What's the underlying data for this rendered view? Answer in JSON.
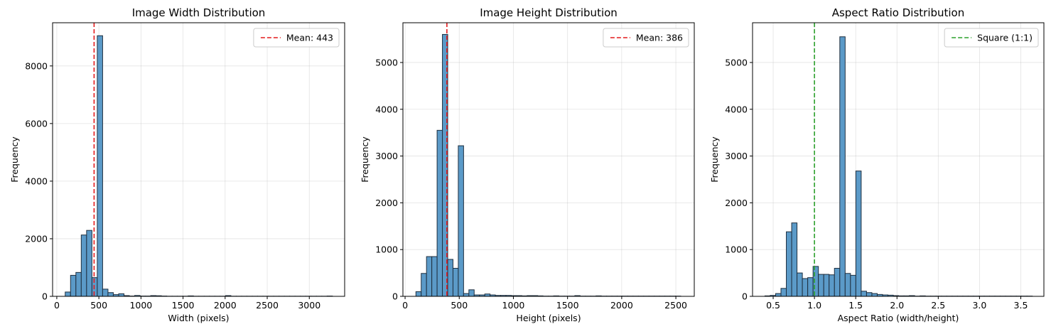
{
  "chart_data": [
    {
      "type": "bar",
      "title": "Image Width Distribution",
      "xlabel": "Width (pixels)",
      "ylabel": "Frequency",
      "xlim": [
        -50,
        3420
      ],
      "ylim": [
        0,
        9500
      ],
      "xticks": [
        0,
        500,
        1000,
        1500,
        2000,
        2500,
        3000
      ],
      "xtick_labels": [
        "0",
        "500",
        "1000",
        "1500",
        "2000",
        "2500",
        "3000"
      ],
      "yticks": [
        0,
        2000,
        4000,
        6000,
        8000
      ],
      "ytick_labels": [
        "0",
        "2000",
        "4000",
        "6000",
        "8000"
      ],
      "grid": true,
      "bar_color": "#5b9ac8",
      "bar_edge_color": "#1f2f3f",
      "bin_edges": [
        100,
        163.5,
        227,
        290.5,
        354,
        417.5,
        481,
        544.5,
        608,
        671.5,
        735,
        798.5,
        862,
        925.5,
        989,
        1052.5,
        1116,
        1179.5,
        1243,
        1306.5,
        1370,
        1433.5,
        1497,
        1560.5,
        1624,
        1687.5,
        1751,
        1814.5,
        1878,
        1941.5,
        2005,
        2068.5,
        2132,
        2195.5,
        2259,
        2322.5,
        2386,
        2449.5,
        2513,
        2576.5,
        2640,
        2703.5,
        2767,
        2830.5,
        2894,
        2957.5,
        3021,
        3084.5,
        3148,
        3211.5,
        3275
      ],
      "counts": [
        150,
        730,
        830,
        2130,
        2290,
        650,
        9050,
        250,
        130,
        60,
        90,
        25,
        10,
        30,
        10,
        10,
        25,
        20,
        10,
        5,
        5,
        5,
        5,
        15,
        5,
        5,
        5,
        5,
        5,
        5,
        25,
        5,
        5,
        5,
        5,
        5,
        5,
        5,
        5,
        5,
        5,
        5,
        5,
        5,
        5,
        5,
        5,
        5,
        5,
        10
      ],
      "vline": {
        "x": 443,
        "color": "#e41a1c",
        "label": "Mean: 443"
      },
      "legend_placement": "top-right"
    },
    {
      "type": "bar",
      "title": "Image Height Distribution",
      "xlabel": "Height (pixels)",
      "ylabel": "Frequency",
      "xlim": [
        -20,
        2670
      ],
      "ylim": [
        0,
        5850
      ],
      "xticks": [
        0,
        500,
        1000,
        1500,
        2000,
        2500
      ],
      "xtick_labels": [
        "0",
        "500",
        "1000",
        "1500",
        "2000",
        "2500"
      ],
      "yticks": [
        0,
        1000,
        2000,
        3000,
        4000,
        5000
      ],
      "ytick_labels": [
        "0",
        "1000",
        "2000",
        "3000",
        "4000",
        "5000"
      ],
      "grid": true,
      "bar_color": "#5b9ac8",
      "bar_edge_color": "#1f2f3f",
      "bin_edges": [
        100,
        148.9,
        197.8,
        246.7,
        295.6,
        344.5,
        393.4,
        442.3,
        491.2,
        540.1,
        589,
        637.9,
        686.8,
        735.7,
        784.6,
        833.5,
        882.4,
        931.3,
        980.2,
        1029.1,
        1078,
        1126.9,
        1175.8,
        1224.7,
        1273.6,
        1322.5,
        1371.4,
        1420.3,
        1469.2,
        1518.1,
        1567,
        1615.9,
        1664.8,
        1713.7,
        1762.6,
        1811.5,
        1860.4,
        1909.3,
        1958.2,
        2007.1,
        2056,
        2104.9,
        2153.8,
        2202.7,
        2251.6,
        2300.5,
        2349.4,
        2398.3,
        2447.2,
        2496.1,
        2545
      ],
      "counts": [
        100,
        490,
        850,
        850,
        3550,
        5600,
        790,
        600,
        3220,
        60,
        140,
        30,
        30,
        50,
        30,
        20,
        20,
        20,
        15,
        15,
        10,
        15,
        15,
        10,
        5,
        5,
        10,
        5,
        5,
        5,
        15,
        5,
        5,
        5,
        10,
        5,
        5,
        5,
        5,
        5,
        5,
        5,
        5,
        5,
        5,
        5,
        5,
        5,
        5,
        5
      ],
      "vline": {
        "x": 386,
        "color": "#e41a1c",
        "label": "Mean: 386"
      },
      "legend_placement": "top-right"
    },
    {
      "type": "bar",
      "title": "Aspect Ratio Distribution",
      "xlabel": "Aspect Ratio (width/height)",
      "ylabel": "Frequency",
      "xlim": [
        0.25,
        3.78
      ],
      "ylim": [
        0,
        5850
      ],
      "xticks": [
        0.5,
        1.0,
        1.5,
        2.0,
        2.5,
        3.0,
        3.5
      ],
      "xtick_labels": [
        "0.5",
        "1.0",
        "1.5",
        "2.0",
        "2.5",
        "3.0",
        "3.5"
      ],
      "yticks": [
        0,
        1000,
        2000,
        3000,
        4000,
        5000
      ],
      "ytick_labels": [
        "0",
        "1000",
        "2000",
        "3000",
        "4000",
        "5000"
      ],
      "grid": true,
      "bar_color": "#5b9ac8",
      "bar_edge_color": "#1f2f3f",
      "bin_edges": [
        0.4,
        0.4648,
        0.5296,
        0.5944,
        0.6592,
        0.724,
        0.7888,
        0.8536,
        0.9184,
        0.9832,
        1.048,
        1.1128,
        1.1776,
        1.2424,
        1.3072,
        1.372,
        1.4368,
        1.5016,
        1.5664,
        1.6312,
        1.696,
        1.7608,
        1.8256,
        1.8904,
        1.9552,
        2.02,
        2.0848,
        2.1496,
        2.2144,
        2.2792,
        2.344,
        2.4088,
        2.4736,
        2.5384,
        2.6032,
        2.668,
        2.7328,
        2.7976,
        2.8624,
        2.9272,
        2.992,
        3.0568,
        3.1216,
        3.1864,
        3.2512,
        3.316,
        3.3808,
        3.4456,
        3.5104,
        3.5752,
        3.64
      ],
      "counts": [
        10,
        20,
        60,
        170,
        1380,
        1570,
        500,
        380,
        400,
        640,
        470,
        470,
        460,
        600,
        5550,
        490,
        450,
        2680,
        110,
        80,
        60,
        40,
        30,
        25,
        15,
        10,
        10,
        15,
        5,
        10,
        5,
        5,
        5,
        5,
        5,
        5,
        5,
        5,
        5,
        5,
        5,
        5,
        5,
        5,
        5,
        5,
        5,
        5,
        5,
        5
      ],
      "vline": {
        "x": 1.0,
        "color": "#2ca02c",
        "label": "Square (1:1)"
      },
      "legend_placement": "top-right"
    }
  ]
}
